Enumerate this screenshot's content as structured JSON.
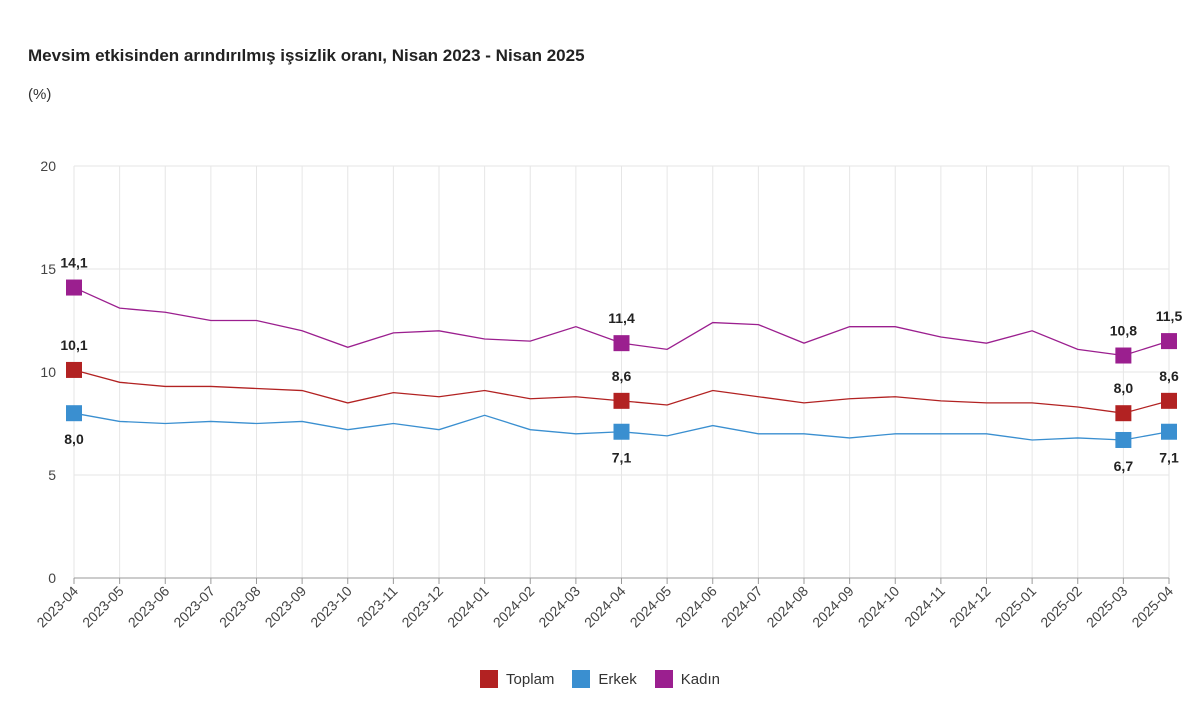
{
  "header": {
    "title": "Mevsim etkisinden arındırılmış işsizlik oranı, Nisan 2023 - Nisan 2025",
    "unit": "(%)"
  },
  "colors": {
    "toplam": "#b22222",
    "erkek": "#3a8fd0",
    "kadin": "#9b1f8f",
    "grid": "#e6e6e6",
    "axis": "#999999"
  },
  "chart_data": {
    "type": "line",
    "title": "Mevsim etkisinden arındırılmış işsizlik oranı, Nisan 2023 - Nisan 2025",
    "ylabel": "(%)",
    "xlabel": "",
    "ylim": [
      0,
      20
    ],
    "yticks": [
      "0",
      "5",
      "10",
      "15",
      "20"
    ],
    "grid": true,
    "legend_position": "bottom",
    "x": [
      "2023-04",
      "2023-05",
      "2023-06",
      "2023-07",
      "2023-08",
      "2023-09",
      "2023-10",
      "2023-11",
      "2023-12",
      "2024-01",
      "2024-02",
      "2024-03",
      "2024-04",
      "2024-05",
      "2024-06",
      "2024-07",
      "2024-08",
      "2024-09",
      "2024-10",
      "2024-11",
      "2024-12",
      "2025-01",
      "2025-02",
      "2025-03",
      "2025-04"
    ],
    "series": [
      {
        "name": "Toplam",
        "color": "#b22222",
        "values": [
          10.1,
          9.5,
          9.3,
          9.3,
          9.2,
          9.1,
          8.5,
          9.0,
          8.8,
          9.1,
          8.7,
          8.8,
          8.6,
          8.4,
          9.1,
          8.8,
          8.5,
          8.7,
          8.8,
          8.6,
          8.5,
          8.5,
          8.3,
          8.0,
          8.6
        ]
      },
      {
        "name": "Erkek",
        "color": "#3a8fd0",
        "values": [
          8.0,
          7.6,
          7.5,
          7.6,
          7.5,
          7.6,
          7.2,
          7.5,
          7.2,
          7.9,
          7.2,
          7.0,
          7.1,
          6.9,
          7.4,
          7.0,
          7.0,
          6.8,
          7.0,
          7.0,
          7.0,
          6.7,
          6.8,
          6.7,
          7.1
        ]
      },
      {
        "name": "Kadın",
        "color": "#9b1f8f",
        "values": [
          14.1,
          13.1,
          12.9,
          12.5,
          12.5,
          12.0,
          11.2,
          11.9,
          12.0,
          11.6,
          11.5,
          12.2,
          11.4,
          11.1,
          12.4,
          12.3,
          11.4,
          12.2,
          12.2,
          11.7,
          11.4,
          12.0,
          11.1,
          10.8,
          11.5
        ]
      }
    ],
    "annotations": [
      {
        "series": "Toplam",
        "x": "2023-04",
        "label": "10,1",
        "side": "above"
      },
      {
        "series": "Toplam",
        "x": "2024-04",
        "label": "8,6",
        "side": "above"
      },
      {
        "series": "Toplam",
        "x": "2025-03",
        "label": "8,0",
        "side": "above"
      },
      {
        "series": "Toplam",
        "x": "2025-04",
        "label": "8,6",
        "side": "above"
      },
      {
        "series": "Erkek",
        "x": "2023-04",
        "label": "8,0",
        "side": "below"
      },
      {
        "series": "Erkek",
        "x": "2024-04",
        "label": "7,1",
        "side": "below"
      },
      {
        "series": "Erkek",
        "x": "2025-03",
        "label": "6,7",
        "side": "below"
      },
      {
        "series": "Erkek",
        "x": "2025-04",
        "label": "7,1",
        "side": "below"
      },
      {
        "series": "Kadın",
        "x": "2023-04",
        "label": "14,1",
        "side": "above"
      },
      {
        "series": "Kadın",
        "x": "2024-04",
        "label": "11,4",
        "side": "above"
      },
      {
        "series": "Kadın",
        "x": "2025-03",
        "label": "10,8",
        "side": "above"
      },
      {
        "series": "Kadın",
        "x": "2025-04",
        "label": "11,5",
        "side": "above"
      }
    ]
  },
  "legend": {
    "items": [
      {
        "label": "Toplam",
        "color": "#b22222"
      },
      {
        "label": "Erkek",
        "color": "#3a8fd0"
      },
      {
        "label": "Kadın",
        "color": "#9b1f8f"
      }
    ]
  }
}
